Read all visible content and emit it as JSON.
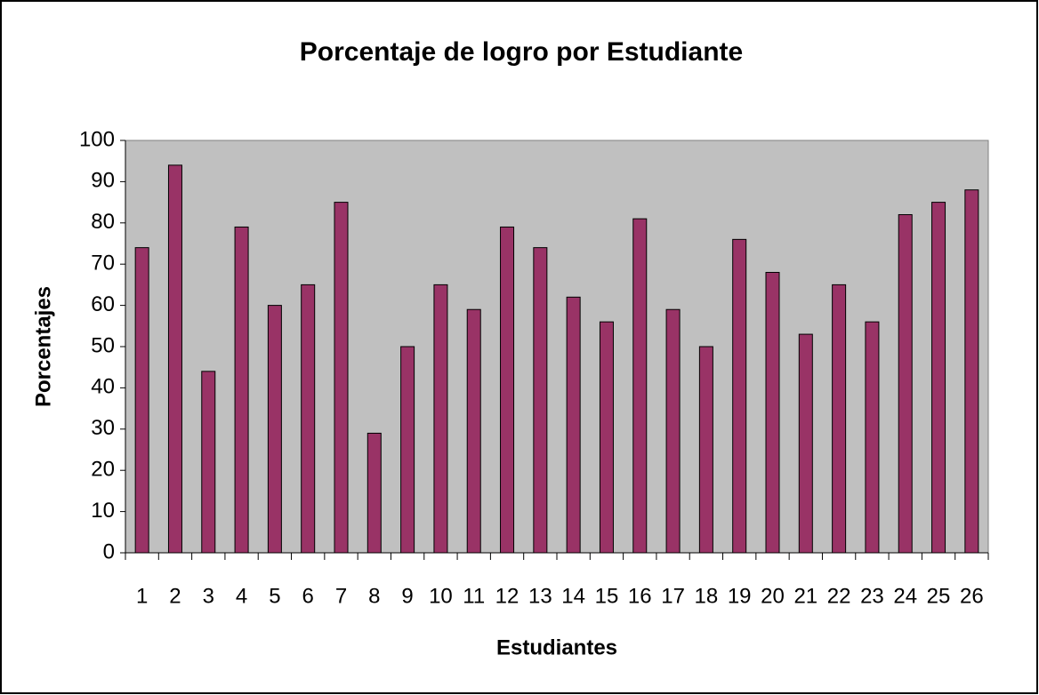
{
  "chart_data": {
    "type": "bar",
    "title": "Porcentaje de logro por Estudiante",
    "x_label": "Estudiantes",
    "y_label": "Porcentajes",
    "categories": [
      "1",
      "2",
      "3",
      "4",
      "5",
      "6",
      "7",
      "8",
      "9",
      "10",
      "11",
      "12",
      "13",
      "14",
      "15",
      "16",
      "17",
      "18",
      "19",
      "20",
      "21",
      "22",
      "23",
      "24",
      "25",
      "26"
    ],
    "values": [
      74,
      94,
      44,
      79,
      60,
      65,
      85,
      29,
      50,
      65,
      59,
      79,
      74,
      62,
      56,
      81,
      59,
      50,
      76,
      68,
      53,
      65,
      56,
      82,
      85,
      88
    ],
    "color": "#993366",
    "ylim": [
      0,
      100
    ],
    "yticks": [
      0,
      10,
      20,
      30,
      40,
      50,
      60,
      70,
      80,
      90,
      100
    ],
    "grid": false
  }
}
